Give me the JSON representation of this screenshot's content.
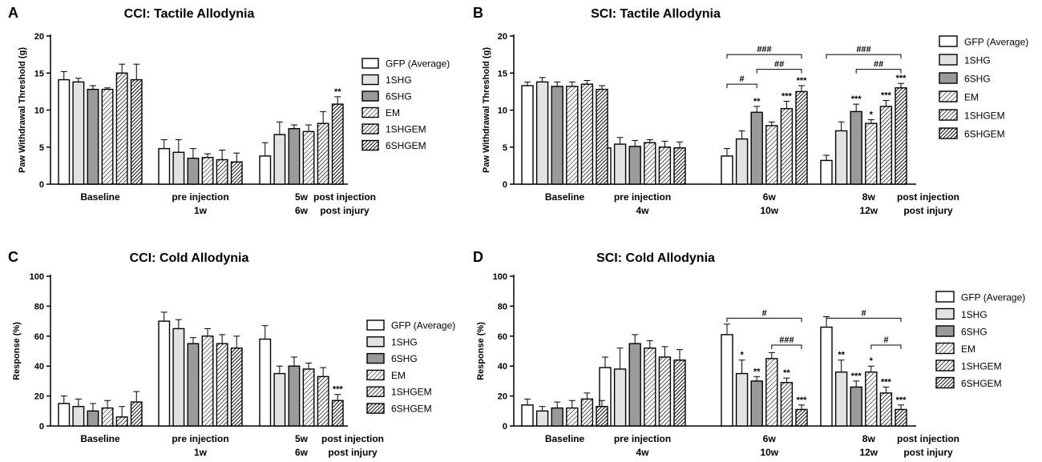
{
  "series_legend": [
    "GFP (Average)",
    "1SHG",
    "6SHG",
    "EM",
    "1SHGEM",
    "6SHGEM"
  ],
  "colors": {
    "gfp": "#ffffff",
    "shg1": "#e2e2e2",
    "shg6": "#9a9a9a",
    "axis": "#000000"
  },
  "panels": [
    {
      "letter": "A",
      "title": "CCI:  Tactile Allodynia",
      "ylabel": "Paw Withdrawal Threshold (g)",
      "groups": [
        {
          "label1": "Baseline",
          "label2": ""
        },
        {
          "label1": "pre injection",
          "label2": "1w"
        },
        {
          "label1": "5w",
          "label2": "6w"
        }
      ],
      "post_labels": [
        "post injection",
        "post injury"
      ],
      "chart_data": {
        "type": "bar",
        "ylim": [
          0,
          20
        ],
        "yticks": [
          0,
          5,
          10,
          15,
          20
        ],
        "categories": [
          "Baseline",
          "pre injection",
          "post injection"
        ],
        "series": [
          {
            "name": "GFP (Average)",
            "values": [
              14.1,
              4.8,
              3.8
            ],
            "errors": [
              1.1,
              1.2,
              1.8
            ]
          },
          {
            "name": "1SHG",
            "values": [
              13.8,
              4.3,
              6.7
            ],
            "errors": [
              0.5,
              1.7,
              1.7
            ]
          },
          {
            "name": "6SHG",
            "values": [
              12.8,
              3.5,
              7.5
            ],
            "errors": [
              0.5,
              1.3,
              0.5
            ]
          },
          {
            "name": "EM",
            "values": [
              12.8,
              3.6,
              7.1
            ],
            "errors": [
              0.2,
              0.5,
              0.9
            ]
          },
          {
            "name": "1SHGEM",
            "values": [
              15.0,
              3.3,
              8.2
            ],
            "errors": [
              1.2,
              1.3,
              1.6
            ]
          },
          {
            "name": "6SHGEM",
            "values": [
              14.1,
              3.0,
              10.8
            ],
            "errors": [
              2.1,
              1.2,
              1.0
            ]
          }
        ],
        "annotations": [
          {
            "group": 2,
            "series": 5,
            "text": "**"
          }
        ],
        "brackets": []
      }
    },
    {
      "letter": "B",
      "title": "SCI:  Tactile Allodynia",
      "ylabel": "Paw Withdrawal Threshold (g)",
      "groups": [
        {
          "label1": "Baseline",
          "label2": ""
        },
        {
          "label1": "pre injection",
          "label2": "4w"
        },
        {
          "label1": "6w",
          "label2": "10w"
        },
        {
          "label1": "8w",
          "label2": "12w"
        }
      ],
      "post_labels": [
        "post injection",
        "post injury"
      ],
      "chart_data": {
        "type": "bar",
        "ylim": [
          0,
          20
        ],
        "yticks": [
          0,
          5,
          10,
          15,
          20
        ],
        "categories": [
          "Baseline",
          "pre injection",
          "6w post injection",
          "8w post injection"
        ],
        "series": [
          {
            "name": "GFP (Average)",
            "values": [
              13.3,
              4.9,
              3.8,
              3.2
            ],
            "errors": [
              0.5,
              0.9,
              1.0,
              0.7
            ]
          },
          {
            "name": "1SHG",
            "values": [
              13.8,
              5.4,
              6.1,
              7.2
            ],
            "errors": [
              0.6,
              0.9,
              1.1,
              1.2
            ]
          },
          {
            "name": "6SHG",
            "values": [
              13.2,
              5.1,
              9.7,
              9.8
            ],
            "errors": [
              0.6,
              0.8,
              0.8,
              1.0
            ]
          },
          {
            "name": "EM",
            "values": [
              13.2,
              5.6,
              7.9,
              8.2
            ],
            "errors": [
              0.6,
              0.4,
              0.5,
              0.5
            ]
          },
          {
            "name": "1SHGEM",
            "values": [
              13.5,
              5.0,
              10.2,
              10.5
            ],
            "errors": [
              0.5,
              0.8,
              1.0,
              0.8
            ]
          },
          {
            "name": "6SHGEM",
            "values": [
              12.8,
              4.9,
              12.5,
              13.0
            ],
            "errors": [
              0.5,
              0.8,
              0.8,
              0.6
            ]
          }
        ],
        "annotations": [
          {
            "group": 2,
            "series": 2,
            "text": "**"
          },
          {
            "group": 2,
            "series": 4,
            "text": "***"
          },
          {
            "group": 2,
            "series": 5,
            "text": "***"
          },
          {
            "group": 3,
            "series": 2,
            "text": "***"
          },
          {
            "group": 3,
            "series": 3,
            "text": "*"
          },
          {
            "group": 3,
            "series": 4,
            "text": "***"
          },
          {
            "group": 3,
            "series": 5,
            "text": "***"
          }
        ],
        "brackets": [
          {
            "group": 2,
            "from": 0,
            "to": 5,
            "y": 17.5,
            "text": "###"
          },
          {
            "group": 2,
            "from": 2,
            "to": 5,
            "y": 15.5,
            "text": "##"
          },
          {
            "group": 2,
            "from": 0,
            "to": 2,
            "y": 13.5,
            "text": "#"
          },
          {
            "group": 3,
            "from": 0,
            "to": 5,
            "y": 17.5,
            "text": "###"
          },
          {
            "group": 3,
            "from": 2,
            "to": 5,
            "y": 15.5,
            "text": "##"
          }
        ]
      }
    },
    {
      "letter": "C",
      "title": "CCI:  Cold Allodynia",
      "ylabel": "Response (%)",
      "groups": [
        {
          "label1": "Baseline",
          "label2": ""
        },
        {
          "label1": "pre injection",
          "label2": "1w"
        },
        {
          "label1": "5w",
          "label2": "6w"
        }
      ],
      "post_labels": [
        "post injection",
        "post injury"
      ],
      "chart_data": {
        "type": "bar",
        "ylim": [
          0,
          100
        ],
        "yticks": [
          0,
          20,
          40,
          60,
          80,
          100
        ],
        "categories": [
          "Baseline",
          "pre injection",
          "post injection"
        ],
        "series": [
          {
            "name": "GFP (Average)",
            "values": [
              15,
              70,
              58
            ],
            "errors": [
              5,
              6,
              9
            ]
          },
          {
            "name": "1SHG",
            "values": [
              13,
              65,
              35
            ],
            "errors": [
              5,
              6,
              5
            ]
          },
          {
            "name": "6SHG",
            "values": [
              10,
              55,
              40
            ],
            "errors": [
              5,
              4,
              6
            ]
          },
          {
            "name": "EM",
            "values": [
              12,
              60,
              38
            ],
            "errors": [
              5,
              5,
              4
            ]
          },
          {
            "name": "1SHGEM",
            "values": [
              6,
              55,
              33
            ],
            "errors": [
              7,
              6,
              6
            ]
          },
          {
            "name": "6SHGEM",
            "values": [
              16,
              52,
              17
            ],
            "errors": [
              7,
              8,
              4
            ]
          }
        ],
        "annotations": [
          {
            "group": 2,
            "series": 5,
            "text": "***"
          }
        ],
        "brackets": []
      }
    },
    {
      "letter": "D",
      "title": "SCI:  Cold Allodynia",
      "ylabel": "Response (%)",
      "groups": [
        {
          "label1": "Baseline",
          "label2": ""
        },
        {
          "label1": "pre injection",
          "label2": "4w"
        },
        {
          "label1": "6w",
          "label2": "10w"
        },
        {
          "label1": "8w",
          "label2": "12w"
        }
      ],
      "post_labels": [
        "post injection",
        "post injury"
      ],
      "chart_data": {
        "type": "bar",
        "ylim": [
          0,
          100
        ],
        "yticks": [
          0,
          20,
          40,
          60,
          80,
          100
        ],
        "categories": [
          "Baseline",
          "pre injection",
          "6w post injection",
          "8w post injection"
        ],
        "series": [
          {
            "name": "GFP (Average)",
            "values": [
              14,
              39,
              61,
              66
            ],
            "errors": [
              4,
              7,
              7,
              7
            ]
          },
          {
            "name": "1SHG",
            "values": [
              10,
              38,
              35,
              36
            ],
            "errors": [
              3,
              14,
              9,
              8
            ]
          },
          {
            "name": "6SHG",
            "values": [
              12,
              55,
              30,
              26
            ],
            "errors": [
              4,
              6,
              3,
              4
            ]
          },
          {
            "name": "EM",
            "values": [
              12,
              52,
              45,
              36
            ],
            "errors": [
              5,
              5,
              4,
              4
            ]
          },
          {
            "name": "1SHGEM",
            "values": [
              18,
              46,
              29,
              22
            ],
            "errors": [
              4,
              7,
              3,
              4
            ]
          },
          {
            "name": "6SHGEM",
            "values": [
              13,
              44,
              11,
              11
            ],
            "errors": [
              4,
              7,
              3,
              3
            ]
          }
        ],
        "annotations": [
          {
            "group": 2,
            "series": 1,
            "text": "*"
          },
          {
            "group": 2,
            "series": 2,
            "text": "**"
          },
          {
            "group": 2,
            "series": 4,
            "text": "**"
          },
          {
            "group": 2,
            "series": 5,
            "text": "***"
          },
          {
            "group": 3,
            "series": 1,
            "text": "**"
          },
          {
            "group": 3,
            "series": 2,
            "text": "***"
          },
          {
            "group": 3,
            "series": 3,
            "text": "*"
          },
          {
            "group": 3,
            "series": 4,
            "text": "***"
          },
          {
            "group": 3,
            "series": 5,
            "text": "***"
          }
        ],
        "brackets": [
          {
            "group": 2,
            "from": 0,
            "to": 5,
            "y": 72,
            "text": "#"
          },
          {
            "group": 2,
            "from": 3,
            "to": 5,
            "y": 54,
            "text": "###"
          },
          {
            "group": 3,
            "from": 0,
            "to": 5,
            "y": 72,
            "text": "#"
          },
          {
            "group": 3,
            "from": 3,
            "to": 5,
            "y": 54,
            "text": "#"
          }
        ]
      }
    }
  ]
}
